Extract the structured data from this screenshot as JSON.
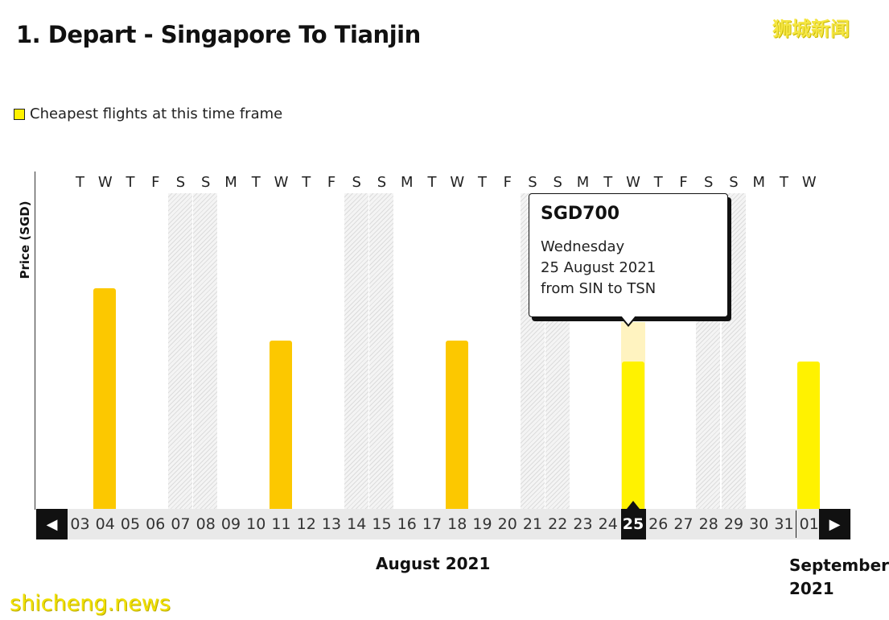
{
  "page": {
    "title": "1. Depart - Singapore To Tianjin",
    "watermark_top": "狮城新闻",
    "watermark_bottom": "shicheng.news"
  },
  "legend": {
    "label": "Cheapest flights at this time frame"
  },
  "colors": {
    "bar": "#fcc800",
    "cheapest": "#fff200",
    "selected_bg": "#111111"
  },
  "chart_data": {
    "type": "bar",
    "title": "1. Depart - Singapore To Tianjin",
    "ylabel": "Price (SGD)",
    "xlabel": "August 2021",
    "days": [
      {
        "date": "03",
        "weekday": "T",
        "weekend": false,
        "price": null,
        "cheapest": false
      },
      {
        "date": "04",
        "weekday": "W",
        "weekend": false,
        "price": 1050,
        "cheapest": false
      },
      {
        "date": "05",
        "weekday": "T",
        "weekend": false,
        "price": null,
        "cheapest": false
      },
      {
        "date": "06",
        "weekday": "F",
        "weekend": false,
        "price": null,
        "cheapest": false
      },
      {
        "date": "07",
        "weekday": "S",
        "weekend": true,
        "price": null,
        "cheapest": false
      },
      {
        "date": "08",
        "weekday": "S",
        "weekend": true,
        "price": null,
        "cheapest": false
      },
      {
        "date": "09",
        "weekday": "M",
        "weekend": false,
        "price": null,
        "cheapest": false
      },
      {
        "date": "10",
        "weekday": "T",
        "weekend": false,
        "price": null,
        "cheapest": false
      },
      {
        "date": "11",
        "weekday": "W",
        "weekend": false,
        "price": 800,
        "cheapest": false
      },
      {
        "date": "12",
        "weekday": "T",
        "weekend": false,
        "price": null,
        "cheapest": false
      },
      {
        "date": "13",
        "weekday": "F",
        "weekend": false,
        "price": null,
        "cheapest": false
      },
      {
        "date": "14",
        "weekday": "S",
        "weekend": true,
        "price": null,
        "cheapest": false
      },
      {
        "date": "15",
        "weekday": "S",
        "weekend": true,
        "price": null,
        "cheapest": false
      },
      {
        "date": "16",
        "weekday": "M",
        "weekend": false,
        "price": null,
        "cheapest": false
      },
      {
        "date": "17",
        "weekday": "T",
        "weekend": false,
        "price": null,
        "cheapest": false
      },
      {
        "date": "18",
        "weekday": "W",
        "weekend": false,
        "price": 800,
        "cheapest": false
      },
      {
        "date": "19",
        "weekday": "T",
        "weekend": false,
        "price": null,
        "cheapest": false
      },
      {
        "date": "20",
        "weekday": "F",
        "weekend": false,
        "price": null,
        "cheapest": false
      },
      {
        "date": "21",
        "weekday": "S",
        "weekend": true,
        "price": null,
        "cheapest": false
      },
      {
        "date": "22",
        "weekday": "S",
        "weekend": true,
        "price": null,
        "cheapest": false
      },
      {
        "date": "23",
        "weekday": "M",
        "weekend": false,
        "price": null,
        "cheapest": false
      },
      {
        "date": "24",
        "weekday": "T",
        "weekend": false,
        "price": null,
        "cheapest": false
      },
      {
        "date": "25",
        "weekday": "W",
        "weekend": false,
        "price": 700,
        "cheapest": true
      },
      {
        "date": "26",
        "weekday": "T",
        "weekend": false,
        "price": null,
        "cheapest": false
      },
      {
        "date": "27",
        "weekday": "F",
        "weekend": false,
        "price": null,
        "cheapest": false
      },
      {
        "date": "28",
        "weekday": "S",
        "weekend": true,
        "price": null,
        "cheapest": false
      },
      {
        "date": "29",
        "weekday": "S",
        "weekend": true,
        "price": null,
        "cheapest": false
      },
      {
        "date": "30",
        "weekday": "M",
        "weekend": false,
        "price": null,
        "cheapest": false
      },
      {
        "date": "31",
        "weekday": "T",
        "weekend": false,
        "price": null,
        "cheapest": false
      },
      {
        "date": "01",
        "weekday": "W",
        "weekend": false,
        "price": 700,
        "cheapest": true
      }
    ],
    "ylim": [
      0,
      1500
    ],
    "selected_date": "25",
    "months": [
      {
        "label": "August 2021",
        "first_index": 0,
        "last_index": 28
      },
      {
        "label": "September 2021",
        "first_index": 29,
        "last_index": 29
      }
    ]
  },
  "tooltip": {
    "price": "SGD700",
    "weekday": "Wednesday",
    "date": "25 August 2021",
    "route": "from SIN to TSN"
  },
  "nav": {
    "prev_icon": "◀",
    "next_icon": "▶"
  },
  "months": {
    "august": "August 2021",
    "september": "September 2021"
  }
}
